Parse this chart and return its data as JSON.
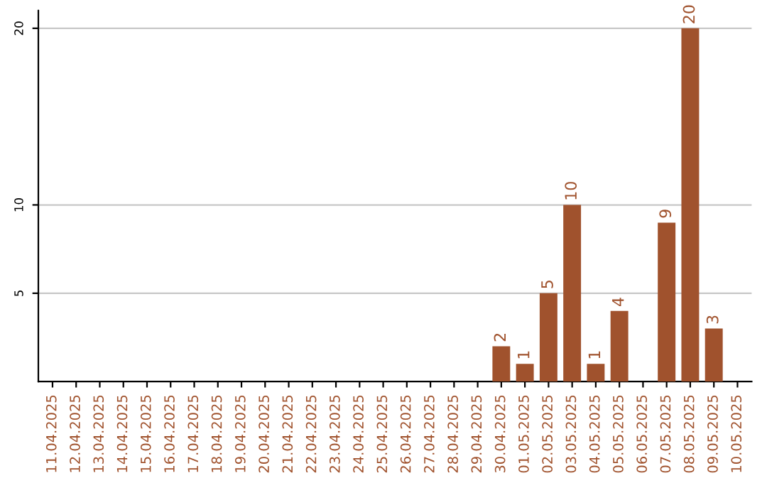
{
  "chart_data": {
    "type": "bar",
    "categories": [
      "11.04.2025",
      "12.04.2025",
      "13.04.2025",
      "14.04.2025",
      "15.04.2025",
      "16.04.2025",
      "17.04.2025",
      "18.04.2025",
      "19.04.2025",
      "20.04.2025",
      "21.04.2025",
      "22.04.2025",
      "23.04.2025",
      "24.04.2025",
      "25.04.2025",
      "26.04.2025",
      "27.04.2025",
      "28.04.2025",
      "29.04.2025",
      "30.04.2025",
      "01.05.2025",
      "02.05.2025",
      "03.05.2025",
      "04.05.2025",
      "05.05.2025",
      "06.05.2025",
      "07.05.2025",
      "08.05.2025",
      "09.05.2025",
      "10.05.2025"
    ],
    "values": [
      0,
      0,
      0,
      0,
      0,
      0,
      0,
      0,
      0,
      0,
      0,
      0,
      0,
      0,
      0,
      0,
      0,
      0,
      0,
      2,
      1,
      5,
      10,
      1,
      4,
      0,
      9,
      20,
      3,
      0
    ],
    "value_labels": [
      null,
      null,
      null,
      null,
      null,
      null,
      null,
      null,
      null,
      null,
      null,
      null,
      null,
      null,
      null,
      null,
      null,
      null,
      null,
      "2",
      "1",
      "5",
      "10",
      "1",
      "4",
      null,
      "9",
      "20",
      "3",
      null
    ],
    "color": "#a0522d",
    "ylim": [
      0,
      21
    ],
    "yticks": [
      5,
      10,
      20
    ],
    "grid": "y"
  }
}
